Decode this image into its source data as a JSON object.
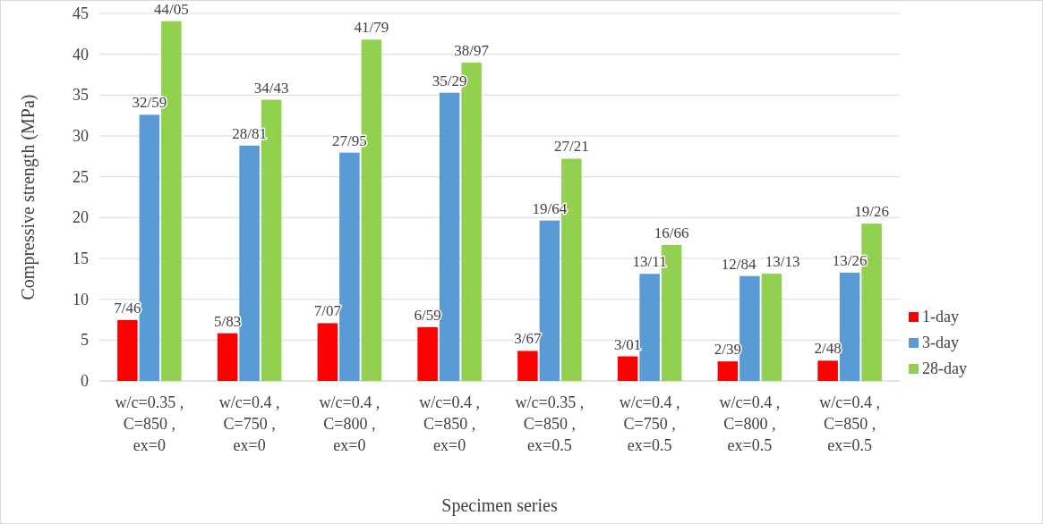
{
  "chart_data": {
    "type": "bar",
    "xlabel": "Specimen series",
    "ylabel": "Compressive strength (MPa)",
    "categories": [
      "w/c=0.35 ,\nC=850 ,\nex=0",
      "w/c=0.4 ,\nC=750 ,\nex=0",
      "w/c=0.4 ,\nC=800 ,\nex=0",
      "w/c=0.4 ,\nC=850 ,\nex=0",
      "w/c=0.35 ,\nC=850 ,\nex=0.5",
      "w/c=0.4 ,\nC=750 ,\nex=0.5",
      "w/c=0.4 ,\nC=800 ,\nex=0.5",
      "w/c=0.4 ,\nC=850 ,\nex=0.5"
    ],
    "series": [
      {
        "name": "1-day",
        "color": "#ff0000",
        "values": [
          7.46,
          5.83,
          7.07,
          6.59,
          3.67,
          3.01,
          2.39,
          2.48
        ],
        "value_labels": [
          "7/46",
          "5/83",
          "7/07",
          "6/59",
          "3/67",
          "3/01",
          "2/39",
          "2/48"
        ]
      },
      {
        "name": "3-day",
        "color": "#5b9bd5",
        "values": [
          32.59,
          28.81,
          27.95,
          35.29,
          19.64,
          13.11,
          12.84,
          13.26
        ],
        "value_labels": [
          "32/59",
          "28/81",
          "27/95",
          "35/29",
          "19/64",
          "13/11",
          "12/84",
          "13/26"
        ]
      },
      {
        "name": "28-day",
        "color": "#92d050",
        "values": [
          44.05,
          34.43,
          41.79,
          38.97,
          27.21,
          16.66,
          13.13,
          19.26
        ],
        "value_labels": [
          "44/05",
          "34/43",
          "41/79",
          "38/97",
          "27/21",
          "16/66",
          "13/13",
          "19/26"
        ]
      }
    ],
    "ylim": [
      0,
      45
    ],
    "yticks": [
      0,
      5,
      10,
      15,
      20,
      25,
      30,
      35,
      40,
      45
    ],
    "grid": "y",
    "legend": "right"
  }
}
